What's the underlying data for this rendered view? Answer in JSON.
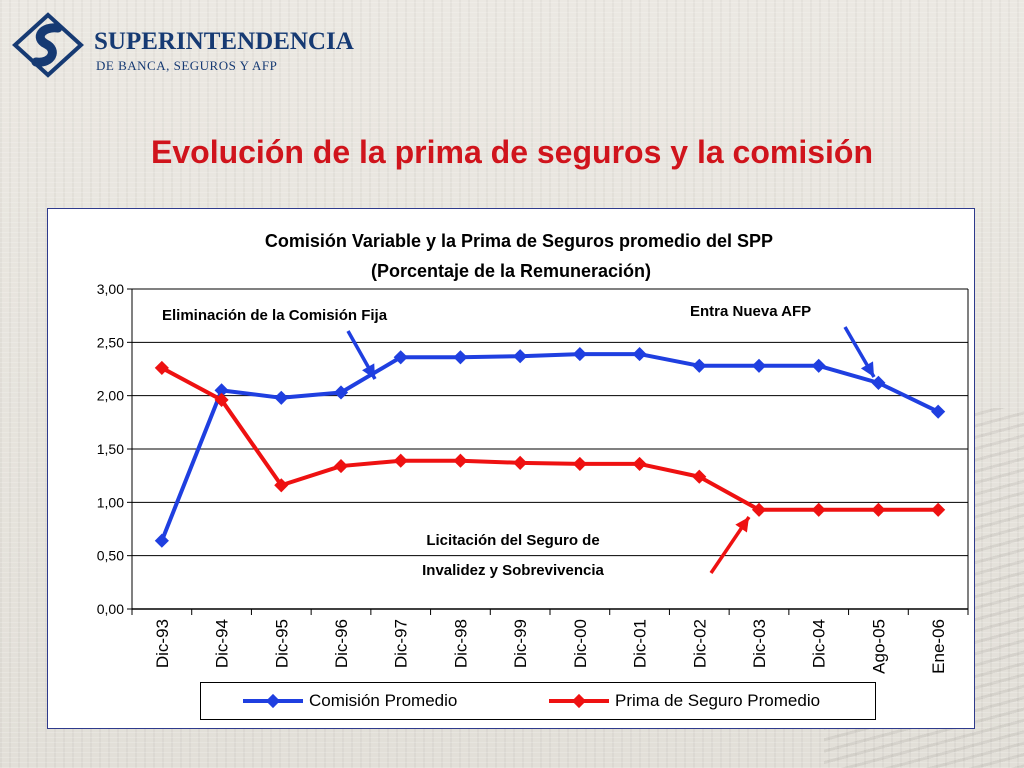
{
  "logo": {
    "name_line1": "SUPERINTENDENCIA",
    "name_line2": "DE BANCA, SEGUROS Y AFP"
  },
  "slide_title": "Evolución de la prima de seguros y la comisión",
  "colors": {
    "series1": "#1f3fe0",
    "series2": "#ee1111",
    "title": "#d0141c",
    "logo": "#163a73",
    "frame": "#2e3a8c"
  },
  "chart_data": {
    "type": "line",
    "title_line1": "Comisión Variable y la Prima de Seguros promedio del SPP",
    "title_line2": "(Porcentaje de la Remuneración)",
    "categories": [
      "Dic-93",
      "Dic-94",
      "Dic-95",
      "Dic-96",
      "Dic-97",
      "Dic-98",
      "Dic-99",
      "Dic-00",
      "Dic-01",
      "Dic-02",
      "Dic-03",
      "Dic-04",
      "Ago-05",
      "Ene-06"
    ],
    "series": [
      {
        "name": "Comisión Promedio",
        "values": [
          0.64,
          2.05,
          1.98,
          2.03,
          2.36,
          2.36,
          2.37,
          2.39,
          2.39,
          2.28,
          2.28,
          2.28,
          2.12,
          1.85
        ]
      },
      {
        "name": "Prima de Seguro Promedio",
        "values": [
          2.26,
          1.96,
          1.16,
          1.34,
          1.39,
          1.39,
          1.37,
          1.36,
          1.36,
          1.24,
          0.93,
          0.93,
          0.93,
          0.93
        ]
      }
    ],
    "yticks": [
      "0,00",
      "0,50",
      "1,00",
      "1,50",
      "2,00",
      "2,50",
      "3,00"
    ],
    "ylim": [
      0,
      3
    ],
    "grid": true,
    "legend_position": "bottom",
    "annotations": [
      {
        "id": "eliminacion",
        "text": "Eliminación de la Comisión Fija"
      },
      {
        "id": "nueva_afp",
        "text": "Entra Nueva AFP"
      },
      {
        "id": "licitacion_line1",
        "text": "Licitación del Seguro de"
      },
      {
        "id": "licitacion_line2",
        "text": "Invalidez y Sobrevivencia"
      }
    ]
  }
}
